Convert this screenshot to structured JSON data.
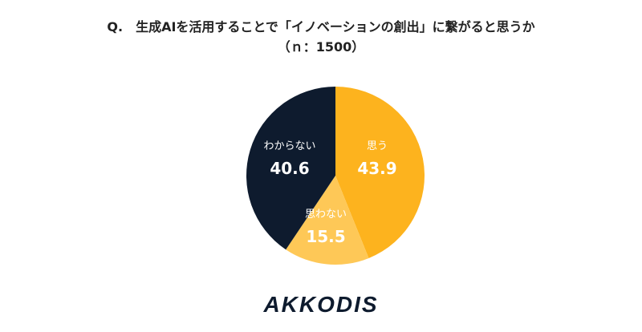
{
  "title": "Q.　生成AIを活用することで「イノベーションの創出」に繋がると思うか",
  "subtitle": "（ｎ：1500）",
  "logo": {
    "text": "AKKODIS",
    "accent": "#f4a81c",
    "dark": "#0e1b2e"
  },
  "chart_data": {
    "type": "pie",
    "slices": [
      {
        "label": "思う",
        "value": 43.9,
        "color": "#fdb31e",
        "text_color": "#ffffff"
      },
      {
        "label": "思わない",
        "value": 15.5,
        "color": "#fec857",
        "text_color": "#ffffff"
      },
      {
        "label": "わからない",
        "value": 40.6,
        "color": "#0e1b2e",
        "text_color": "#ffffff"
      }
    ],
    "start_angle_deg": 0,
    "direction": "clockwise"
  }
}
